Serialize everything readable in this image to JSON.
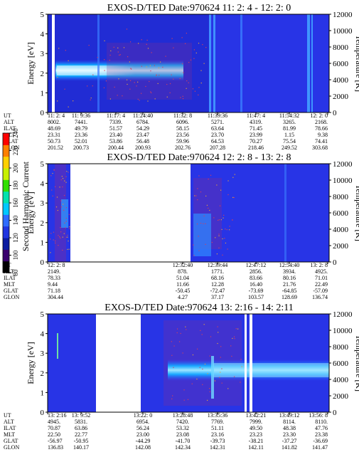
{
  "chart_data": [
    {
      "type": "heatmap",
      "title": "EXOS-D/TED   Date:970624  11: 2: 4 - 12: 2: 0",
      "ylabel": "Energy [eV]",
      "y2label": "Temperature [K]",
      "ylim": [
        0,
        5
      ],
      "yticks": [
        "0",
        "1",
        "2",
        "3",
        "4",
        "5"
      ],
      "y2lim": [
        0,
        12000
      ],
      "y2ticks": [
        "0",
        "2000",
        "4000",
        "6000",
        "8000",
        "10000",
        "12000"
      ],
      "table_rows": [
        {
          "label": "UT",
          "values": [
            "11: 2: 4",
            "11: 9:36",
            "11:17: 4",
            "11:24:40",
            "11:32: 8",
            "11:39:36",
            "11:47: 4",
            "11:54:32",
            "12: 2: 0"
          ]
        },
        {
          "label": "ALT",
          "values": [
            "8002.",
            "7441.",
            "7339.",
            "6784.",
            "6096.",
            "5271.",
            "4319.",
            "3265.",
            "2168."
          ]
        },
        {
          "label": "ILAT",
          "values": [
            "48.69",
            "49.79",
            "51.57",
            "54.29",
            "58.15",
            "63.64",
            "71.45",
            "81.99",
            "78.66"
          ]
        },
        {
          "label": "MLT",
          "values": [
            "23.31",
            "23.36",
            "23.40",
            "23.47",
            "23.56",
            "23.70",
            "23.99",
            "1.15",
            "9.38"
          ]
        },
        {
          "label": "GLAT",
          "values": [
            "50.73",
            "52.01",
            "53.86",
            "56.48",
            "59.96",
            "64.53",
            "70.27",
            "75.54",
            "74.41"
          ]
        },
        {
          "label": "GLON",
          "values": [
            "201.52",
            "200.73",
            "200.44",
            "200.93",
            "202.76",
            "207.28",
            "218.46",
            "249.52",
            "303.68"
          ]
        }
      ]
    },
    {
      "type": "heatmap",
      "title": "EXOS-D/TED   Date:970624  12: 2: 8 - 13: 2: 8",
      "ylabel": "Energy [eV]",
      "y2label": "Temperature [K]",
      "ylim": [
        0,
        5
      ],
      "yticks": [
        "0",
        "1",
        "2",
        "3",
        "4",
        "5"
      ],
      "y2lim": [
        0,
        12000
      ],
      "y2ticks": [
        "0",
        "2000",
        "4000",
        "6000",
        "8000",
        "10000",
        "12000"
      ],
      "table_rows": [
        {
          "label": "UT",
          "values": [
            "12: 2: 8",
            "",
            "",
            "",
            "12:32:40",
            "12:39:44",
            "12:47:12",
            "12:54:40",
            "13: 2: 8"
          ]
        },
        {
          "label": "ALT",
          "values": [
            "2149.",
            "",
            "",
            "",
            "878.",
            "1771.",
            "2856.",
            "3934.",
            "4925."
          ]
        },
        {
          "label": "ILAT",
          "values": [
            "78.33",
            "",
            "",
            "",
            "51.04",
            "68.16",
            "83.66",
            "80.16",
            "71.01"
          ]
        },
        {
          "label": "MLT",
          "values": [
            "9.44",
            "",
            "",
            "",
            "11.66",
            "12.28",
            "16.40",
            "21.76",
            "22.49"
          ]
        },
        {
          "label": "GLAT",
          "values": [
            "71.18",
            "",
            "",
            "",
            "-50.45",
            "-72.47",
            "-73.69",
            "-64.85",
            "-57.09"
          ]
        },
        {
          "label": "GLON",
          "values": [
            "304.44",
            "",
            "",
            "",
            "4.27",
            "37.17",
            "103.57",
            "128.69",
            "136.74"
          ]
        }
      ]
    },
    {
      "type": "heatmap",
      "title": "EXOS-D/TED   Date:970624  13: 2:16 - 14: 2:11",
      "ylabel": "Energy [eV]",
      "y2label": "Temperature [K]",
      "ylim": [
        0,
        5
      ],
      "yticks": [
        "0",
        "1",
        "2",
        "3",
        "4",
        "5"
      ],
      "y2lim": [
        0,
        12000
      ],
      "y2ticks": [
        "0",
        "2000",
        "4000",
        "6000",
        "8000",
        "10000",
        "12000"
      ],
      "table_rows": [
        {
          "label": "UT",
          "values": [
            "13: 2:16",
            "13: 9:52",
            "",
            "13:22: 0",
            "13:28:48",
            "13:35:36",
            "13:42:21",
            "13:49:12",
            "13:56: 8"
          ]
        },
        {
          "label": "ALT",
          "values": [
            "4945.",
            "5831.",
            "",
            "6954.",
            "7420.",
            "7769.",
            "7999.",
            "8114.",
            "8110."
          ]
        },
        {
          "label": "ILAT",
          "values": [
            "70.87",
            "63.86",
            "",
            "56.24",
            "53.32",
            "51.11",
            "49.50",
            "48.38",
            "47.76"
          ]
        },
        {
          "label": "MLT",
          "values": [
            "22.50",
            "22.77",
            "",
            "23.00",
            "23.08",
            "23.16",
            "23.23",
            "23.30",
            "23.38"
          ]
        },
        {
          "label": "GLAT",
          "values": [
            "-56.97",
            "-50.95",
            "",
            "-44.29",
            "-41.70",
            "-39.73",
            "-38.21",
            "-37.27",
            "-36.69"
          ]
        },
        {
          "label": "GLON",
          "values": [
            "136.83",
            "140.17",
            "",
            "142.08",
            "142.34",
            "142.31",
            "142.11",
            "141.82",
            "141.47"
          ]
        }
      ]
    }
  ],
  "colorbar": {
    "label": "Second Harmonic Current",
    "ticks": [
      "80",
      "100",
      "120",
      "140",
      "160",
      "180",
      "200",
      "220",
      "240"
    ],
    "colors": [
      "#000000",
      "#3a006e",
      "#0a1aa0",
      "#1f34e0",
      "#2e6bff",
      "#00c8ff",
      "#00e2ae",
      "#30e000",
      "#c8f000",
      "#ffd000",
      "#ff8000",
      "#ff0000"
    ]
  },
  "colors": {
    "background": "#2936e8",
    "band": "#20c8ff",
    "band_core": "#cff6ff",
    "streak": "#a23080",
    "gap": "#ffffff"
  }
}
